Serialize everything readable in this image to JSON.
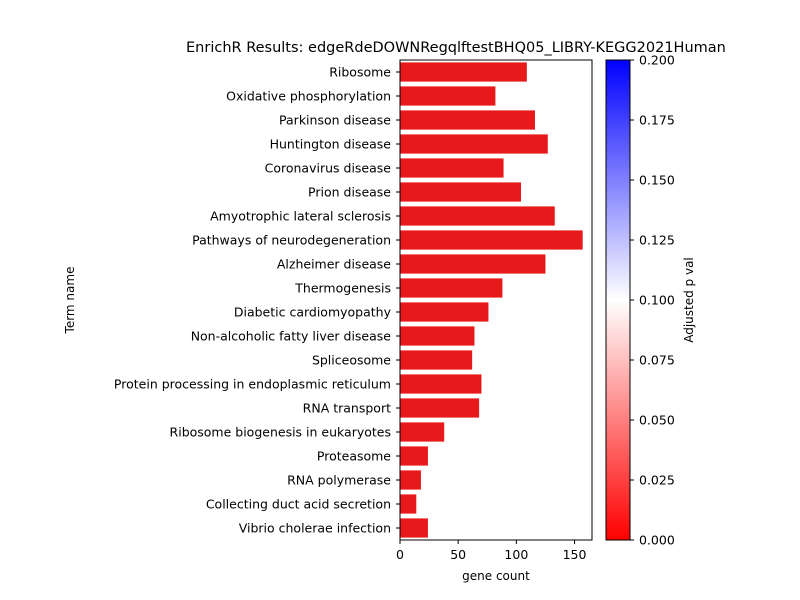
{
  "chart_data": {
    "type": "bar",
    "orientation": "horizontal",
    "title": "EnrichR Results: edgeRdeDOWNRegqlftestBHQ05_LIBRY-KEGG2021Human",
    "xlabel": "gene count",
    "ylabel": "Term name",
    "xlim": [
      0,
      165
    ],
    "xticks": [
      0,
      50,
      100,
      150
    ],
    "grid": false,
    "categories": [
      "Ribosome",
      "Oxidative phosphorylation",
      "Parkinson disease",
      "Huntington disease",
      "Coronavirus disease",
      "Prion disease",
      "Amyotrophic lateral sclerosis",
      "Pathways of neurodegeneration",
      "Alzheimer disease",
      "Thermogenesis",
      "Diabetic cardiomyopathy",
      "Non-alcoholic fatty liver disease",
      "Spliceosome",
      "Protein processing in endoplasmic reticulum",
      "RNA transport",
      "Ribosome biogenesis in eukaryotes",
      "Proteasome",
      "RNA polymerase",
      "Collecting duct acid secretion",
      "Vibrio cholerae infection"
    ],
    "values": [
      109,
      82,
      116,
      127,
      89,
      104,
      133,
      157,
      125,
      88,
      76,
      64,
      62,
      70,
      68,
      38,
      24,
      18,
      14,
      24
    ],
    "bar_color": "#e8191b",
    "colorbar": {
      "label": "Adjusted p val",
      "range": [
        0.0,
        0.2
      ],
      "ticks": [
        "0.000",
        "0.025",
        "0.050",
        "0.075",
        "0.100",
        "0.125",
        "0.150",
        "0.175",
        "0.200"
      ],
      "colors": [
        "#ff0000",
        "#ffffff",
        "#0000ff"
      ]
    }
  }
}
